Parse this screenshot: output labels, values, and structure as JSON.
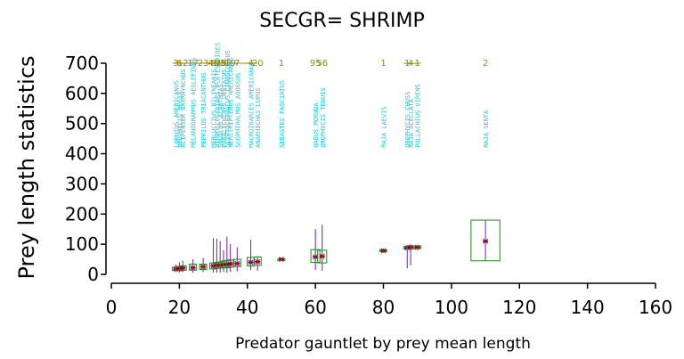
{
  "chart_data": {
    "type": "scatter",
    "title": "SECGR= SHRIMP",
    "xlabel": "Predator gauntlet by prey mean length",
    "ylabel": "Prey length statistics",
    "xlim": [
      0,
      160
    ],
    "ylim": [
      0,
      700
    ],
    "x_ticks": [
      "0",
      "20",
      "40",
      "60",
      "80",
      "100",
      "120",
      "140",
      "160"
    ],
    "y_ticks": [
      "0",
      "100",
      "200",
      "300",
      "400",
      "500",
      "600",
      "700"
    ],
    "colors": {
      "box": "#1a8a1a",
      "whisker": "#7a1aa0",
      "mean": "#0000cc",
      "median": "#cc0000",
      "species_label": "#22c8d8",
      "count_label": "#9a8a00"
    },
    "points": [
      {
        "species": "LOPHIUS AMERICANUS",
        "count": "3",
        "x": 19,
        "mean": 18,
        "q1": 13,
        "q3": 24,
        "min": 8,
        "max": 32
      },
      {
        "species": "UROPHYCIS REGIA",
        "count": "6",
        "x": 20,
        "mean": 19,
        "q1": 12,
        "q3": 26,
        "min": 6,
        "max": 40
      },
      {
        "species": "ACIPENSER OXYRHYNCHUS",
        "count": "12",
        "x": 21,
        "mean": 21,
        "q1": 14,
        "q3": 28,
        "min": 8,
        "max": 45
      },
      {
        "species": "MELANOGRAMMUS AEGLEFINUS",
        "count": "17",
        "x": 24,
        "mean": 22,
        "q1": 14,
        "q3": 34,
        "min": 6,
        "max": 50
      },
      {
        "species": "PEPRILUS TRIACANTHUS",
        "count": "23",
        "x": 27,
        "mean": 25,
        "q1": 16,
        "q3": 34,
        "min": 8,
        "max": 55
      },
      {
        "species": "MERLUCCIUS BILINEARIS",
        "count": "46",
        "x": 30,
        "mean": 28,
        "q1": 18,
        "q3": 38,
        "min": 6,
        "max": 120
      },
      {
        "species": "HIPPOGLOSSOIDES PLATESSOIDES",
        "count": "81",
        "x": 31,
        "mean": 30,
        "q1": 20,
        "q3": 40,
        "min": 5,
        "max": 118
      },
      {
        "species": "SQUALUS ACANTHIAS",
        "count": "95",
        "x": 32,
        "mean": 31,
        "q1": 21,
        "q3": 41,
        "min": 6,
        "max": 110
      },
      {
        "species": "PARALICHTHYS DENTATUS",
        "count": "8",
        "x": 33,
        "mean": 32,
        "q1": 22,
        "q3": 44,
        "min": 8,
        "max": 80
      },
      {
        "species": "GLYPTOCEPHALUS CYNOGLOSSUS",
        "count": "52",
        "x": 34,
        "mean": 33,
        "q1": 22,
        "q3": 46,
        "min": 6,
        "max": 125
      },
      {
        "species": "HEMITRIPTERUS AMERICANUS",
        "count": "19",
        "x": 35,
        "mean": 35,
        "q1": 24,
        "q3": 48,
        "min": 8,
        "max": 100
      },
      {
        "species": "SCOPHTHALMUS AQUOSUS",
        "count": "7",
        "x": 37,
        "mean": 36,
        "q1": 26,
        "q3": 50,
        "min": 10,
        "max": 90
      },
      {
        "species": "MACROZOARCES AMERICANUS",
        "count": "4",
        "x": 41,
        "mean": 40,
        "q1": 28,
        "q3": 56,
        "min": 14,
        "max": 115
      },
      {
        "species": "ANARHICHAS LUPUS",
        "count": "20",
        "x": 43,
        "mean": 42,
        "q1": 30,
        "q3": 58,
        "min": 12,
        "max": 60
      },
      {
        "species": "SEBASTES FASCIATUS",
        "count": "1",
        "x": 50,
        "mean": 50,
        "q1": 48,
        "q3": 52,
        "min": 45,
        "max": 55
      },
      {
        "species": "GADUS MORHUA",
        "count": "95",
        "x": 60,
        "mean": 58,
        "q1": 40,
        "q3": 82,
        "min": 15,
        "max": 150
      },
      {
        "species": "UROPHYCIS TENUIS",
        "count": "56",
        "x": 62,
        "mean": 60,
        "q1": 38,
        "q3": 80,
        "min": 12,
        "max": 165
      },
      {
        "species": "RAJA LAEVIS",
        "count": "1",
        "x": 80,
        "mean": 78,
        "q1": 76,
        "q3": 82,
        "min": 72,
        "max": 86
      },
      {
        "species": "UROPHYCIS CHUSS",
        "count": "1",
        "x": 87,
        "mean": 88,
        "q1": 84,
        "q3": 92,
        "min": 20,
        "max": 98
      },
      {
        "species": "RAJA OCELLATA",
        "count": "4",
        "x": 88,
        "mean": 90,
        "q1": 84,
        "q3": 94,
        "min": 30,
        "max": 100
      },
      {
        "species": "POLLACHIUS VIRENS",
        "count": "1",
        "x": 90,
        "mean": 90,
        "q1": 86,
        "q3": 94,
        "min": 80,
        "max": 98
      },
      {
        "species": "RAJA SENTA",
        "count": "2",
        "x": 110,
        "mean": 110,
        "q1": 45,
        "q3": 180,
        "min": 45,
        "max": 180
      }
    ]
  }
}
